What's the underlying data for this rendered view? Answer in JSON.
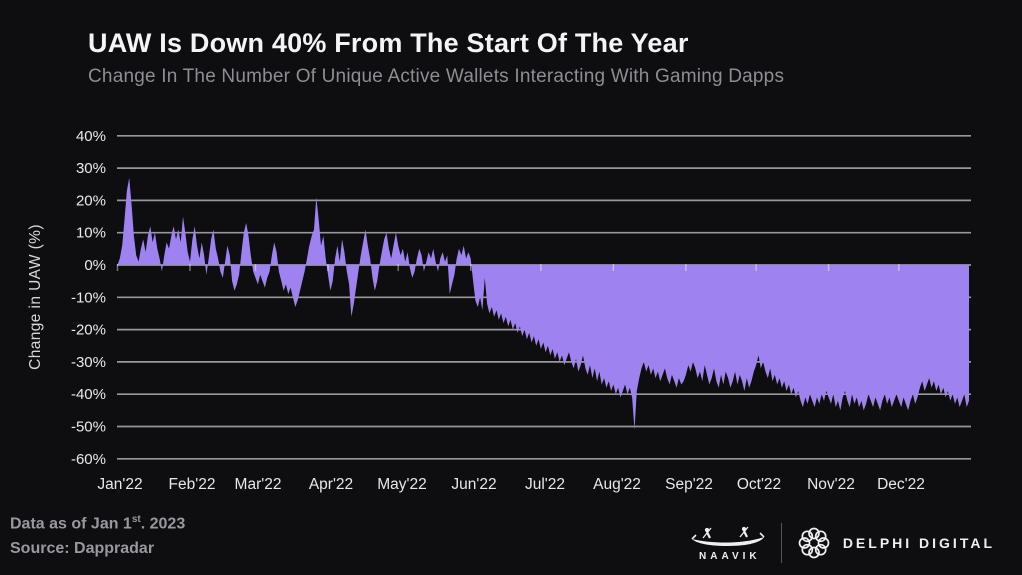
{
  "header": {
    "title": "UAW Is Down 40% From The Start Of The Year",
    "subtitle": "Change In The Number Of Unique Active Wallets Interacting With Gaming Dapps"
  },
  "chart_data": {
    "type": "area",
    "title": "UAW Is Down 40% From The Start Of The Year",
    "xlabel": "",
    "ylabel": "Change in UAW (%)",
    "unit": "%",
    "ylim": [
      -60,
      40
    ],
    "grid": true,
    "fill_color": "#9e83f0",
    "background_color": "#0e0e11",
    "y_ticks": [
      40,
      30,
      20,
      10,
      0,
      -10,
      -20,
      -30,
      -40,
      -50,
      -60
    ],
    "y_tick_labels": [
      "40%",
      "30%",
      "20%",
      "10%",
      "0%",
      "-10%",
      "-20%",
      "-30%",
      "-40%",
      "-50%",
      "-60%"
    ],
    "x_tick_labels": [
      "Jan'22",
      "Feb'22",
      "Mar'22",
      "Apr'22",
      "May'22",
      "Jun'22",
      "Jul'22",
      "Aug'22",
      "Sep'22",
      "Oct'22",
      "Nov'22",
      "Dec'22"
    ],
    "month_start_day_index": [
      0,
      31,
      59,
      90,
      120,
      151,
      181,
      212,
      243,
      273,
      304,
      334
    ],
    "values": [
      0,
      2,
      6,
      14,
      23,
      27,
      19,
      9,
      3,
      1,
      5,
      8,
      4,
      9,
      12,
      7,
      10,
      5,
      2,
      -2,
      3,
      7,
      5,
      9,
      12,
      8,
      11,
      7,
      15,
      10,
      4,
      1,
      8,
      12,
      6,
      2,
      7,
      3,
      -3,
      2,
      8,
      11,
      5,
      2,
      -2,
      -4,
      1,
      6,
      3,
      -5,
      -8,
      -6,
      -3,
      4,
      10,
      13,
      9,
      3,
      -2,
      -4,
      -6,
      -3,
      -5,
      -7,
      -4,
      -2,
      3,
      7,
      4,
      -2,
      -5,
      -8,
      -6,
      -9,
      -7,
      -10,
      -13,
      -11,
      -8,
      -5,
      -2,
      2,
      6,
      9,
      11,
      21,
      14,
      6,
      9,
      2,
      -3,
      -8,
      -5,
      2,
      6,
      1,
      8,
      4,
      -2,
      -6,
      -16,
      -12,
      -7,
      -2,
      3,
      7,
      11,
      6,
      2,
      -4,
      -8,
      -5,
      0,
      4,
      8,
      10,
      5,
      2,
      6,
      10,
      6,
      3,
      5,
      1,
      4,
      -1,
      -4,
      -2,
      2,
      5,
      3,
      -2,
      1,
      4,
      2,
      5,
      1,
      -2,
      2,
      4,
      1,
      3,
      -9,
      -6,
      -3,
      2,
      5,
      3,
      6,
      2,
      4,
      2,
      -5,
      -11,
      -13,
      -10,
      -14,
      -4,
      -12,
      -15,
      -13,
      -16,
      -14,
      -17,
      -15,
      -18,
      -16,
      -19,
      -17,
      -20,
      -18,
      -21,
      -19,
      -22,
      -20,
      -23,
      -21,
      -24,
      -22,
      -25,
      -23,
      -26,
      -24,
      -27,
      -25,
      -28,
      -26,
      -29,
      -27,
      -30,
      -28,
      -31,
      -29,
      -27,
      -30,
      -32,
      -29,
      -33,
      -31,
      -28,
      -32,
      -34,
      -31,
      -35,
      -32,
      -36,
      -33,
      -37,
      -35,
      -38,
      -36,
      -39,
      -37,
      -40,
      -38,
      -41,
      -39,
      -37,
      -40,
      -38,
      -41,
      -51,
      -39,
      -35,
      -32,
      -30,
      -33,
      -31,
      -34,
      -32,
      -35,
      -33,
      -36,
      -34,
      -32,
      -35,
      -37,
      -34,
      -36,
      -38,
      -35,
      -37,
      -36,
      -34,
      -31,
      -33,
      -30,
      -32,
      -35,
      -33,
      -36,
      -31,
      -34,
      -37,
      -35,
      -32,
      -36,
      -38,
      -34,
      -37,
      -33,
      -35,
      -38,
      -36,
      -33,
      -37,
      -34,
      -36,
      -39,
      -35,
      -38,
      -36,
      -33,
      -31,
      -28,
      -32,
      -30,
      -33,
      -35,
      -32,
      -36,
      -34,
      -37,
      -35,
      -38,
      -36,
      -39,
      -37,
      -40,
      -38,
      -41,
      -39,
      -42,
      -44,
      -41,
      -43,
      -40,
      -42,
      -44,
      -41,
      -43,
      -40,
      -42,
      -39,
      -41,
      -43,
      -40,
      -44,
      -42,
      -45,
      -41,
      -39,
      -42,
      -44,
      -40,
      -43,
      -41,
      -44,
      -42,
      -45,
      -43,
      -40,
      -42,
      -44,
      -41,
      -43,
      -45,
      -42,
      -40,
      -43,
      -41,
      -44,
      -42,
      -40,
      -42,
      -44,
      -41,
      -43,
      -45,
      -42,
      -40,
      -43,
      -41,
      -38,
      -36,
      -39,
      -37,
      -35,
      -38,
      -36,
      -39,
      -37,
      -40,
      -38,
      -41,
      -39,
      -42,
      -40,
      -43,
      -41,
      -44,
      -42,
      -40,
      -44,
      -42
    ]
  },
  "footer": {
    "data_as_of_prefix": "Data as of Jan 1",
    "data_as_of_sup": "st",
    "data_as_of_suffix": ". 2023",
    "source": "Source: Dappradar",
    "naavik_label": "NAAVIK",
    "delphi_label": "DELPHI DIGITAL"
  }
}
